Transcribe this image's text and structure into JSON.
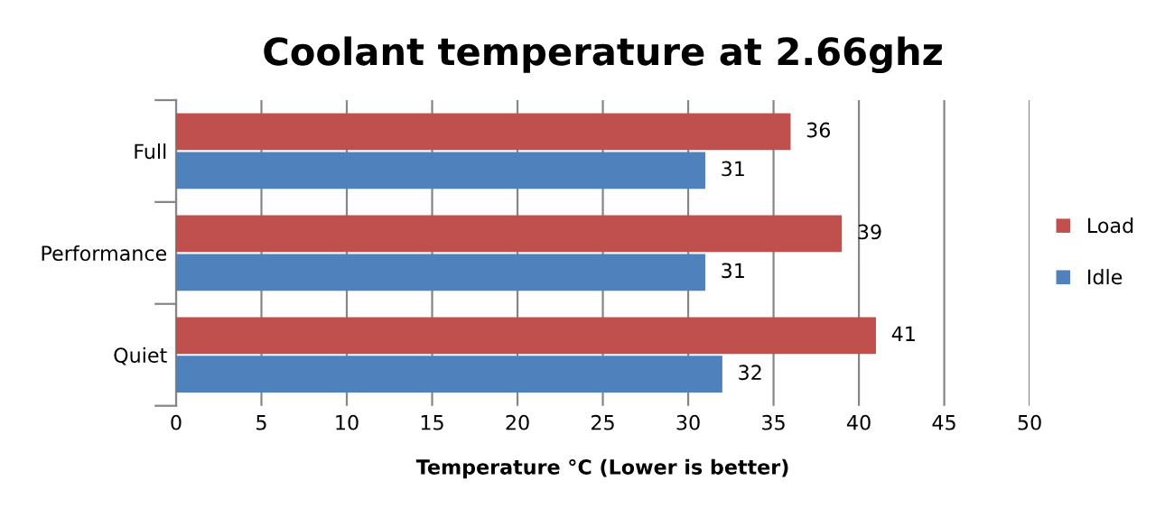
{
  "chart_data": {
    "type": "bar",
    "orientation": "horizontal",
    "title": "Coolant temperature at 2.66ghz",
    "xlabel": "Temperature °C (Lower is better)",
    "categories": [
      "Full",
      "Performance",
      "Quiet"
    ],
    "series": [
      {
        "name": "Load",
        "color": "#c0504d",
        "values": [
          36,
          39,
          41
        ]
      },
      {
        "name": "Idle",
        "color": "#4f81bd",
        "values": [
          31,
          31,
          32
        ]
      }
    ],
    "xlim": [
      0,
      50
    ],
    "xticks": [
      0,
      5,
      10,
      15,
      20,
      25,
      30,
      35,
      40,
      45,
      50
    ],
    "grid": "x",
    "legend": "right",
    "data_labels": true
  }
}
